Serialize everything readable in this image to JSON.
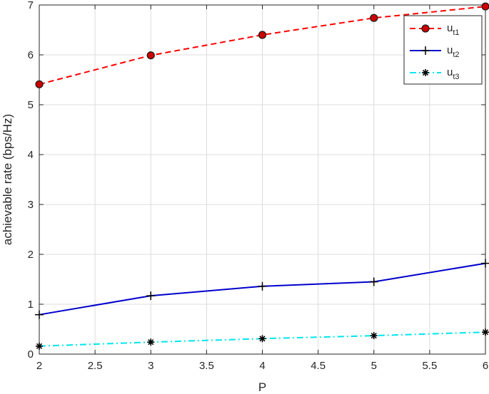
{
  "chart_data": {
    "type": "line",
    "title": "",
    "xlabel": "P",
    "ylabel": "achievable rate (bps/Hz)",
    "xlim": [
      2,
      6
    ],
    "ylim": [
      0,
      7
    ],
    "x_ticks": [
      2,
      2.5,
      3,
      3.5,
      4,
      4.5,
      5,
      5.5,
      6
    ],
    "x_tick_labels": [
      "2",
      "2.5",
      "3",
      "3.5",
      "4",
      "4.5",
      "5",
      "5.5",
      "6"
    ],
    "y_ticks": [
      0,
      1,
      2,
      3,
      4,
      5,
      6,
      7
    ],
    "y_tick_labels": [
      "0",
      "1",
      "2",
      "3",
      "4",
      "5",
      "6",
      "7"
    ],
    "grid": true,
    "legend_position": "top-right",
    "x": [
      2,
      3,
      4,
      5,
      6
    ],
    "series": [
      {
        "name": "u",
        "subscript": "t1",
        "values": [
          5.41,
          5.99,
          6.4,
          6.74,
          6.97
        ],
        "color": "#ff0000",
        "line": "dashed",
        "marker": "circle"
      },
      {
        "name": "u",
        "subscript": "t2",
        "values": [
          0.79,
          1.17,
          1.36,
          1.45,
          1.82
        ],
        "color": "#0000cc",
        "line": "solid",
        "marker": "plus"
      },
      {
        "name": "u",
        "subscript": "t3",
        "values": [
          0.16,
          0.24,
          0.31,
          0.37,
          0.44
        ],
        "color": "#00e5ee",
        "line": "dashdot",
        "marker": "asterisk"
      }
    ]
  }
}
